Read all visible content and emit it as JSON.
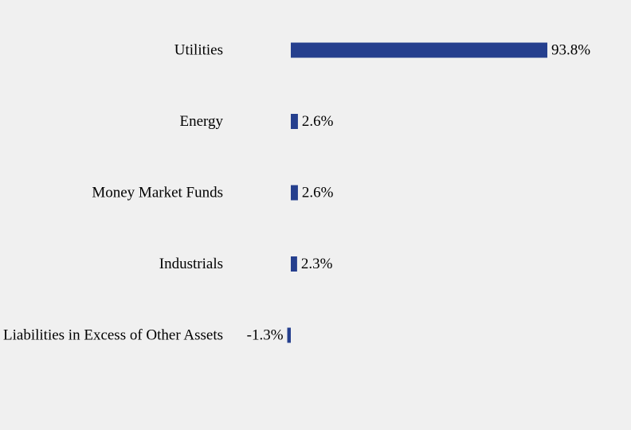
{
  "chart_data": {
    "type": "bar",
    "orientation": "horizontal",
    "categories": [
      "Utilities",
      "Energy",
      "Money Market Funds",
      "Industrials",
      "Liabilities in Excess of Other Assets"
    ],
    "values": [
      93.8,
      2.6,
      2.6,
      2.3,
      -1.3
    ],
    "value_labels": [
      "93.8%",
      "2.6%",
      "2.6%",
      "2.3%",
      "-1.3%"
    ],
    "title": "",
    "xlabel": "",
    "ylabel": "",
    "grid": false,
    "legend": "none",
    "bar_color": "#253f8e",
    "background": "#f0f0f0"
  }
}
